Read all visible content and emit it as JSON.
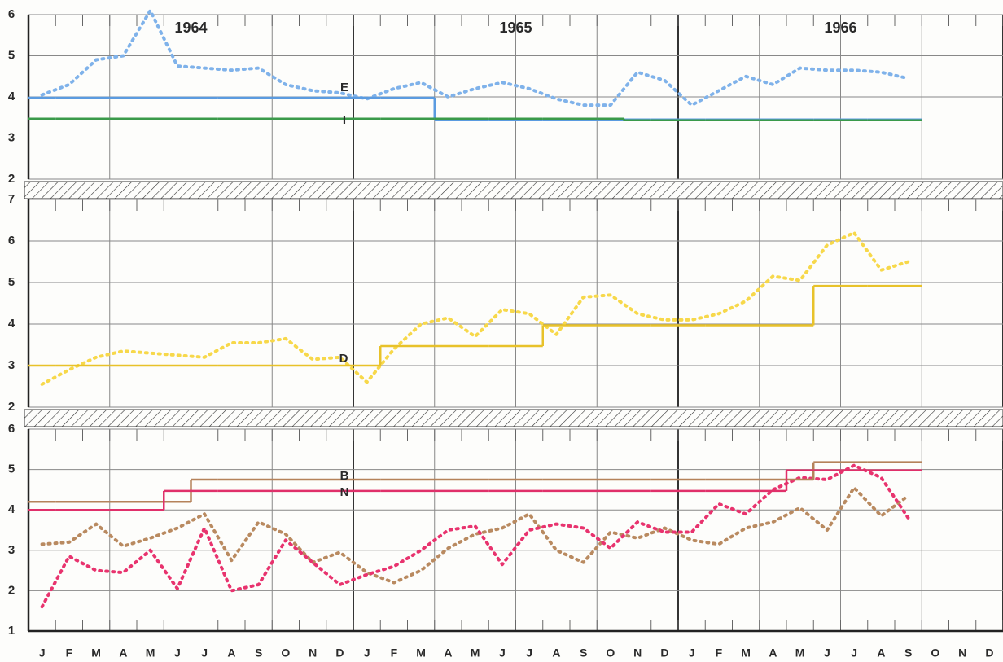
{
  "chart_data": [
    {
      "type": "line",
      "ylim": [
        2,
        6
      ],
      "yticks": [
        2,
        3,
        4,
        5,
        6
      ],
      "year_labels": [
        "1964",
        "1965",
        "1966"
      ],
      "series": [
        {
          "style": "dotted",
          "color": "#7fb2ea",
          "values": [
            4.05,
            4.3,
            4.9,
            5.0,
            6.1,
            4.75,
            4.7,
            4.65,
            4.7,
            4.3,
            4.15,
            4.1,
            3.95,
            4.2,
            4.35,
            4.0,
            4.2,
            4.35,
            4.2,
            3.95,
            3.8,
            3.8,
            4.6,
            4.4,
            3.8,
            4.15,
            4.5,
            4.3,
            4.7,
            4.65,
            4.65,
            4.6,
            4.45,
            null,
            null,
            null
          ]
        },
        {
          "name": "E",
          "style": "step",
          "color": "#5b9be0",
          "values": [
            3.98,
            3.98,
            3.98,
            3.98,
            3.98,
            3.98,
            3.98,
            3.98,
            3.98,
            3.98,
            3.98,
            3.98,
            3.98,
            3.98,
            3.98,
            3.45,
            3.45,
            3.45,
            3.45,
            3.45,
            3.45,
            3.45,
            3.45,
            3.45,
            3.45,
            3.45,
            3.45,
            3.45,
            3.45,
            3.45,
            3.45,
            3.45,
            3.45,
            null,
            null,
            null
          ]
        },
        {
          "name": "I",
          "style": "step",
          "color": "#3a9a4a",
          "values": [
            3.47,
            3.47,
            3.47,
            3.47,
            3.47,
            3.47,
            3.47,
            3.47,
            3.47,
            3.47,
            3.47,
            3.47,
            3.47,
            3.47,
            3.47,
            3.47,
            3.47,
            3.47,
            3.47,
            3.47,
            3.47,
            3.47,
            3.43,
            3.43,
            3.43,
            3.43,
            3.43,
            3.43,
            3.43,
            3.43,
            3.43,
            3.43,
            3.43,
            null,
            null,
            null
          ]
        }
      ]
    },
    {
      "type": "line",
      "ylim": [
        2,
        7
      ],
      "yticks": [
        2,
        3,
        4,
        5,
        6,
        7
      ],
      "series": [
        {
          "style": "dotted",
          "color": "#f7d84a",
          "values": [
            2.55,
            2.9,
            3.2,
            3.35,
            3.3,
            3.25,
            3.2,
            3.55,
            3.55,
            3.65,
            3.15,
            3.2,
            2.6,
            3.4,
            4.0,
            4.15,
            3.7,
            4.35,
            4.25,
            3.75,
            4.65,
            4.7,
            4.25,
            4.1,
            4.1,
            4.25,
            4.55,
            5.15,
            5.05,
            5.9,
            6.2,
            5.3,
            5.5,
            null,
            null,
            null
          ]
        },
        {
          "name": "D",
          "style": "step",
          "color": "#e8c22a",
          "values": [
            3.0,
            3.0,
            3.0,
            3.0,
            3.0,
            3.0,
            3.0,
            3.0,
            3.0,
            3.0,
            3.0,
            3.0,
            3.0,
            3.47,
            3.47,
            3.47,
            3.47,
            3.47,
            3.47,
            3.97,
            3.97,
            3.97,
            3.97,
            3.97,
            3.97,
            3.97,
            3.97,
            3.97,
            3.97,
            4.92,
            4.92,
            4.92,
            4.92,
            null,
            null,
            null
          ]
        }
      ]
    },
    {
      "type": "line",
      "ylim": [
        1,
        6
      ],
      "yticks": [
        1,
        2,
        3,
        4,
        5,
        6
      ],
      "categories": [
        "J",
        "F",
        "M",
        "A",
        "M",
        "J",
        "J",
        "A",
        "S",
        "O",
        "N",
        "D",
        "J",
        "F",
        "M",
        "A",
        "M",
        "J",
        "J",
        "A",
        "S",
        "O",
        "N",
        "D",
        "J",
        "F",
        "M",
        "A",
        "M",
        "J",
        "J",
        "A",
        "S",
        "O",
        "N",
        "D"
      ],
      "series": [
        {
          "style": "dotted",
          "color": "#b98a60",
          "values": [
            3.15,
            3.2,
            3.65,
            3.1,
            3.3,
            3.55,
            3.9,
            2.75,
            3.7,
            3.4,
            2.7,
            2.95,
            2.45,
            2.2,
            2.5,
            3.05,
            3.4,
            3.55,
            3.9,
            3.0,
            2.7,
            3.45,
            3.3,
            3.55,
            3.25,
            3.15,
            3.55,
            3.7,
            4.05,
            3.5,
            4.55,
            3.85,
            4.35,
            null,
            null,
            null
          ]
        },
        {
          "style": "dotted",
          "color": "#e8336e",
          "values": [
            1.6,
            2.85,
            2.5,
            2.45,
            3.0,
            2.05,
            3.55,
            2.0,
            2.15,
            3.25,
            2.7,
            2.15,
            2.4,
            2.6,
            3.0,
            3.5,
            3.6,
            2.65,
            3.5,
            3.65,
            3.55,
            3.05,
            3.7,
            3.45,
            3.45,
            4.15,
            3.9,
            4.5,
            4.8,
            4.75,
            5.1,
            4.8,
            3.8,
            null,
            null,
            null
          ]
        },
        {
          "name": "B",
          "style": "step",
          "color": "#b5825a",
          "values": [
            4.2,
            4.2,
            4.2,
            4.2,
            4.2,
            4.2,
            4.75,
            4.75,
            4.75,
            4.75,
            4.75,
            4.75,
            4.75,
            4.75,
            4.75,
            4.75,
            4.75,
            4.75,
            4.75,
            4.75,
            4.75,
            4.75,
            4.75,
            4.75,
            4.75,
            4.75,
            4.75,
            4.75,
            4.75,
            5.18,
            5.18,
            5.18,
            5.18,
            null,
            null,
            null
          ]
        },
        {
          "name": "N",
          "style": "step",
          "color": "#e0306a",
          "values": [
            4.0,
            4.0,
            4.0,
            4.0,
            4.0,
            4.47,
            4.47,
            4.47,
            4.47,
            4.47,
            4.47,
            4.47,
            4.47,
            4.47,
            4.47,
            4.47,
            4.47,
            4.47,
            4.47,
            4.47,
            4.47,
            4.47,
            4.47,
            4.47,
            4.47,
            4.47,
            4.47,
            4.47,
            4.98,
            4.98,
            4.98,
            4.98,
            4.98,
            null,
            null,
            null
          ]
        }
      ]
    }
  ]
}
